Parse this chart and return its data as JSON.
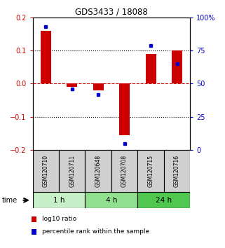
{
  "title": "GDS3433 / 18088",
  "samples": [
    "GSM120710",
    "GSM120711",
    "GSM120648",
    "GSM120708",
    "GSM120715",
    "GSM120716"
  ],
  "log10_ratio": [
    0.16,
    -0.01,
    -0.02,
    -0.155,
    0.09,
    0.1
  ],
  "percentile_rank": [
    93,
    46,
    42,
    5,
    79,
    65
  ],
  "groups": [
    {
      "label": "1 h",
      "indices": [
        0,
        1
      ],
      "color": "#c8f0c8"
    },
    {
      "label": "4 h",
      "indices": [
        2,
        3
      ],
      "color": "#90e090"
    },
    {
      "label": "24 h",
      "indices": [
        4,
        5
      ],
      "color": "#50c850"
    }
  ],
  "bar_color": "#cc0000",
  "dot_color": "#0000cc",
  "ylim_left": [
    -0.2,
    0.2
  ],
  "ylim_right": [
    0,
    100
  ],
  "yticks_left": [
    -0.2,
    -0.1,
    0,
    0.1,
    0.2
  ],
  "yticks_right": [
    0,
    25,
    50,
    75,
    100
  ],
  "ytick_labels_right": [
    "0",
    "25",
    "50",
    "75",
    "100%"
  ],
  "hline_color": "#cc0000",
  "dotted_color": "black",
  "sample_box_color": "#d0d0d0",
  "legend_items": [
    {
      "color": "#cc0000",
      "label": "log10 ratio"
    },
    {
      "color": "#0000cc",
      "label": "percentile rank within the sample"
    }
  ]
}
